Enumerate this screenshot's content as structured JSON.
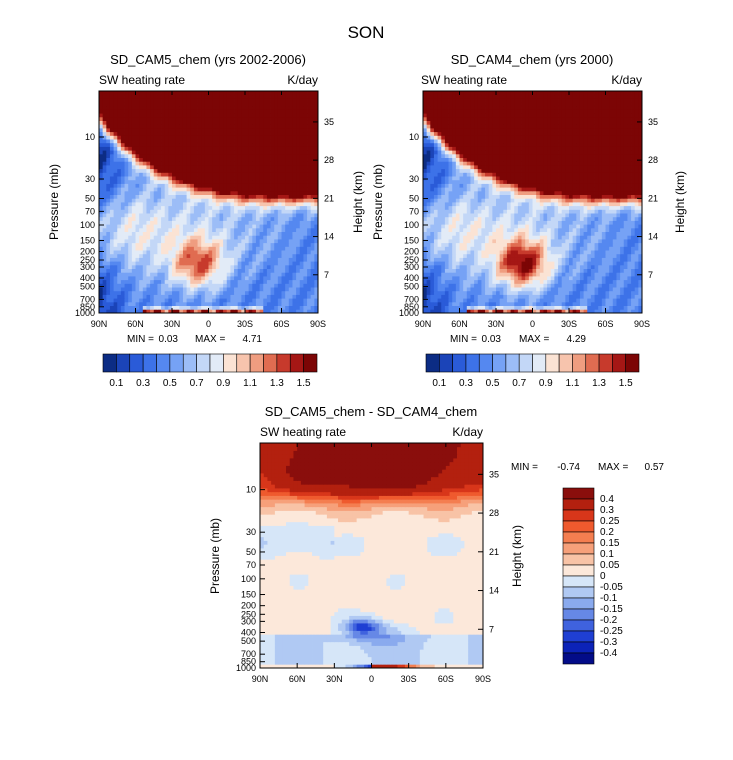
{
  "figure": {
    "title": "SON"
  },
  "chart_data": [
    {
      "type": "heatmap",
      "title": "SD_CAM5_chem (yrs 2002-2006)",
      "variable": "SW heating rate",
      "units": "K/day",
      "xlabel": "",
      "ylabel": "Pressure (mb)",
      "y2label": "Height (km)",
      "x_ticks": [
        "90N",
        "60N",
        "30N",
        "0",
        "30S",
        "60S",
        "90S"
      ],
      "y_ticks": [
        "10",
        "30",
        "50",
        "70",
        "100",
        "150",
        "200",
        "250",
        "300",
        "400",
        "500",
        "700",
        "850",
        "1000"
      ],
      "y2_ticks": [
        "35",
        "28",
        "21",
        "14",
        "7"
      ],
      "ylim": [
        1000,
        3
      ],
      "stats": {
        "min_label": "MIN =",
        "min": "0.03",
        "max_label": "MAX =",
        "max": "4.71"
      },
      "colorbar": {
        "orientation": "horizontal",
        "labels": [
          "0.1",
          "0.3",
          "0.5",
          "0.7",
          "0.9",
          "1.1",
          "1.3",
          "1.5"
        ],
        "levels": [
          0.1,
          0.2,
          0.3,
          0.4,
          0.5,
          0.6,
          0.7,
          0.8,
          0.9,
          1.0,
          1.1,
          1.2,
          1.3,
          1.4,
          1.5
        ],
        "colors": [
          "#0c2c84",
          "#1b44b8",
          "#2a5bd8",
          "#3d72e8",
          "#5588f0",
          "#76a2f5",
          "#9cbdf7",
          "#c3d7f7",
          "#e2ebf7",
          "#fbe3d4",
          "#f7c4ad",
          "#ef9d80",
          "#e06c51",
          "#c73a2c",
          "#a51715",
          "#7c0505"
        ]
      }
    },
    {
      "type": "heatmap",
      "title": "SD_CAM4_chem (yrs 2000)",
      "variable": "SW heating rate",
      "units": "K/day",
      "xlabel": "",
      "ylabel": "Pressure (mb)",
      "y2label": "Height (km)",
      "x_ticks": [
        "90N",
        "60N",
        "30N",
        "0",
        "30S",
        "60S",
        "90S"
      ],
      "y_ticks": [
        "10",
        "30",
        "50",
        "70",
        "100",
        "150",
        "200",
        "250",
        "300",
        "400",
        "500",
        "700",
        "850",
        "1000"
      ],
      "y2_ticks": [
        "35",
        "28",
        "21",
        "14",
        "7"
      ],
      "ylim": [
        1000,
        3
      ],
      "stats": {
        "min_label": "MIN =",
        "min": "0.03",
        "max_label": "MAX =",
        "max": "4.29"
      },
      "colorbar": {
        "orientation": "horizontal",
        "labels": [
          "0.1",
          "0.3",
          "0.5",
          "0.7",
          "0.9",
          "1.1",
          "1.3",
          "1.5"
        ],
        "levels": [
          0.1,
          0.2,
          0.3,
          0.4,
          0.5,
          0.6,
          0.7,
          0.8,
          0.9,
          1.0,
          1.1,
          1.2,
          1.3,
          1.4,
          1.5
        ],
        "colors": [
          "#0c2c84",
          "#1b44b8",
          "#2a5bd8",
          "#3d72e8",
          "#5588f0",
          "#76a2f5",
          "#9cbdf7",
          "#c3d7f7",
          "#e2ebf7",
          "#fbe3d4",
          "#f7c4ad",
          "#ef9d80",
          "#e06c51",
          "#c73a2c",
          "#a51715",
          "#7c0505"
        ]
      }
    },
    {
      "type": "heatmap",
      "title": "SD_CAM5_chem - SD_CAM4_chem",
      "variable": "SW heating rate",
      "units": "K/day",
      "xlabel": "",
      "ylabel": "Pressure (mb)",
      "y2label": "Height (km)",
      "x_ticks": [
        "90N",
        "60N",
        "30N",
        "0",
        "30S",
        "60S",
        "90S"
      ],
      "y_ticks": [
        "10",
        "30",
        "50",
        "70",
        "100",
        "150",
        "200",
        "250",
        "300",
        "400",
        "500",
        "700",
        "850",
        "1000"
      ],
      "y2_ticks": [
        "35",
        "28",
        "21",
        "14",
        "7"
      ],
      "ylim": [
        1000,
        3
      ],
      "stats": {
        "min_label": "MIN =",
        "min": "-0.74",
        "max_label": "MAX =",
        "max": "0.57"
      },
      "colorbar": {
        "orientation": "vertical",
        "labels": [
          "0.4",
          "0.3",
          "0.25",
          "0.2",
          "0.15",
          "0.1",
          "0.05",
          "0",
          "-0.05",
          "-0.1",
          "-0.15",
          "-0.2",
          "-0.25",
          "-0.3",
          "-0.4"
        ],
        "levels": [
          0.4,
          0.3,
          0.25,
          0.2,
          0.15,
          0.1,
          0.05,
          0,
          -0.05,
          -0.1,
          -0.15,
          -0.2,
          -0.25,
          -0.3,
          -0.4
        ],
        "colors": [
          "#8a0e0c",
          "#b3200f",
          "#d8361a",
          "#ef5a2e",
          "#f47e50",
          "#f6a07a",
          "#f8c3a6",
          "#fce8da",
          "#d6e6f8",
          "#b0c9f3",
          "#8aaaee",
          "#6688e6",
          "#3f62de",
          "#1f3fd3",
          "#0c23b8",
          "#030c88"
        ]
      }
    }
  ]
}
